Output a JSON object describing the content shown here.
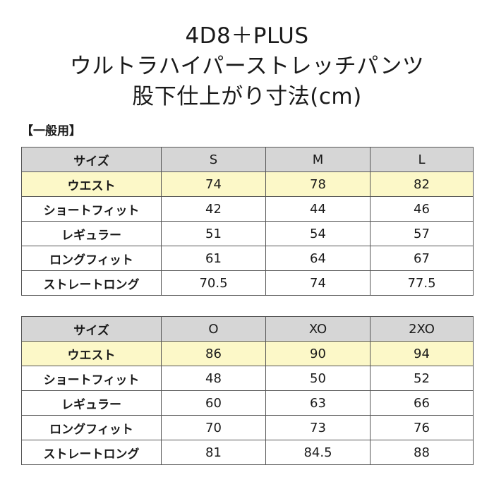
{
  "title": {
    "line1": "4D8＋PLUS",
    "line2": "ウルトラハイパーストレッチパンツ",
    "line3": "股下仕上がり寸法(cm)"
  },
  "section_label": "【一般用】",
  "tables": [
    {
      "header": [
        "サイズ",
        "S",
        "M",
        "L"
      ],
      "rows": [
        {
          "label": "ウエスト",
          "values": [
            "74",
            "78",
            "82"
          ]
        },
        {
          "label": "ショートフィット",
          "values": [
            "42",
            "44",
            "46"
          ]
        },
        {
          "label": "レギュラー",
          "values": [
            "51",
            "54",
            "57"
          ]
        },
        {
          "label": "ロングフィット",
          "values": [
            "61",
            "64",
            "67"
          ]
        },
        {
          "label": "ストレートロング",
          "values": [
            "70.5",
            "74",
            "77.5"
          ]
        }
      ]
    },
    {
      "header": [
        "サイズ",
        "O",
        "XO",
        "2XO"
      ],
      "rows": [
        {
          "label": "ウエスト",
          "values": [
            "86",
            "90",
            "94"
          ]
        },
        {
          "label": "ショートフィット",
          "values": [
            "48",
            "50",
            "52"
          ]
        },
        {
          "label": "レギュラー",
          "values": [
            "60",
            "63",
            "66"
          ]
        },
        {
          "label": "ロングフィット",
          "values": [
            "70",
            "73",
            "76"
          ]
        },
        {
          "label": "ストレートロング",
          "values": [
            "81",
            "84.5",
            "88"
          ]
        }
      ]
    }
  ],
  "colors": {
    "header_bg": "#d6d6d6",
    "waist_row_bg": "#fcf8c8",
    "border": "#555555"
  }
}
